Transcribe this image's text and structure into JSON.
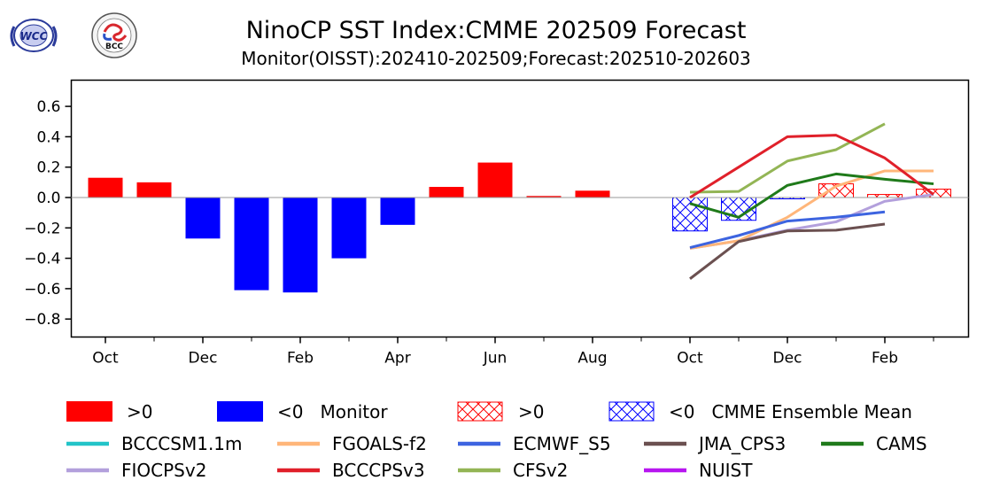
{
  "header": {
    "title": "NinoCP SST Index:CMME 202509 Forecast",
    "subtitle": "Monitor(OISST):202410-202509;Forecast:202510-202603",
    "logos": [
      {
        "name": "wcc-logo",
        "text": "WCC"
      },
      {
        "name": "bcc-logo",
        "text": "BCC"
      }
    ]
  },
  "chart_data": {
    "type": "bar",
    "title": "NinoCP SST Index:CMME 202509 Forecast",
    "subtitle": "Monitor(OISST):202410-202509;Forecast:202510-202603",
    "xlabel": "",
    "ylabel": "",
    "ylim": [
      -0.94,
      0.78
    ],
    "yticks": [
      0.6,
      0.4,
      0.2,
      0.0,
      -0.2,
      -0.4,
      -0.6,
      -0.8
    ],
    "ytick_labels": [
      "0.6",
      "0.4",
      "0.2",
      "0.0",
      "−0.2",
      "−0.4",
      "−0.6",
      "−0.8"
    ],
    "months": [
      "2024-10",
      "2024-11",
      "2024-12",
      "2025-01",
      "2025-02",
      "2025-03",
      "2025-04",
      "2025-05",
      "2025-06",
      "2025-07",
      "2025-08",
      "2025-09",
      "2025-10",
      "2025-11",
      "2025-12",
      "2026-01",
      "2026-02",
      "2026-03"
    ],
    "xtick_labels": [
      {
        "index": 0,
        "label": "Oct"
      },
      {
        "index": 2,
        "label": "Dec"
      },
      {
        "index": 4,
        "label": "Feb"
      },
      {
        "index": 6,
        "label": "Apr"
      },
      {
        "index": 8,
        "label": "Jun"
      },
      {
        "index": 10,
        "label": "Aug"
      },
      {
        "index": 12,
        "label": "Oct"
      },
      {
        "index": 14,
        "label": "Dec"
      },
      {
        "index": 16,
        "label": "Feb"
      }
    ],
    "monitor": {
      "name": "Monitor",
      "start_index": 0,
      "values": [
        0.13,
        0.1,
        -0.27,
        -0.61,
        -0.625,
        -0.4,
        -0.18,
        0.07,
        0.23,
        0.01,
        0.045,
        null
      ]
    },
    "ensemble_mean": {
      "name": "CMME Ensemble Mean",
      "start_index": 12,
      "values": [
        -0.22,
        -0.15,
        -0.005,
        0.09,
        0.02,
        0.055
      ]
    },
    "series": [
      {
        "name": "BCCCSM1.1m",
        "color": "#22c4c8",
        "start_index": 12,
        "values": []
      },
      {
        "name": "FGOALS-f2",
        "color": "#ffb67a",
        "start_index": 12,
        "values": [
          -0.335,
          -0.285,
          -0.13,
          0.075,
          0.175,
          0.175
        ]
      },
      {
        "name": "ECMWF_S5",
        "color": "#3d64e0",
        "start_index": 12,
        "values": [
          -0.33,
          -0.25,
          -0.155,
          -0.13,
          -0.095
        ]
      },
      {
        "name": "JMA_CPS3",
        "color": "#6b5050",
        "start_index": 12,
        "values": [
          -0.535,
          -0.29,
          -0.22,
          -0.215,
          -0.175
        ]
      },
      {
        "name": "CAMS",
        "color": "#1f7a1a",
        "start_index": 12,
        "values": [
          -0.04,
          -0.13,
          0.08,
          0.155,
          0.12,
          0.09
        ]
      },
      {
        "name": "FIOCPSv2",
        "color": "#b3a0dc",
        "start_index": 12,
        "values": [
          -0.335,
          -0.285,
          -0.215,
          -0.16,
          -0.025,
          0.02
        ]
      },
      {
        "name": "BCCCPSv3",
        "color": "#e0202a",
        "start_index": 12,
        "values": [
          0.0,
          0.2,
          0.4,
          0.41,
          0.26,
          0.02
        ]
      },
      {
        "name": "CFSv2",
        "color": "#93b555",
        "start_index": 12,
        "values": [
          0.035,
          0.04,
          0.24,
          0.315,
          0.485
        ]
      },
      {
        "name": "NUIST",
        "color": "#b716f0",
        "start_index": 12,
        "values": []
      }
    ],
    "colors": {
      "positive": "#ff0000",
      "negative": "#0000ff",
      "zero_line": "#999999"
    },
    "legend": {
      "placement": "bottom",
      "bar_entries": [
        {
          "label": ">0",
          "kind": "solid",
          "color": "#ff0000"
        },
        {
          "label": "<0   Monitor",
          "kind": "solid",
          "color": "#0000ff"
        },
        {
          "label": ">0",
          "kind": "hatch",
          "color": "#ff0000"
        },
        {
          "label": "<0   CMME Ensemble Mean",
          "kind": "hatch",
          "color": "#0000ff"
        }
      ],
      "line_rows": [
        [
          "BCCCSM1.1m",
          "FGOALS-f2",
          "ECMWF_S5",
          "JMA_CPS3",
          "CAMS"
        ],
        [
          "FIOCPSv2",
          "BCCCPSv3",
          "CFSv2",
          "NUIST"
        ]
      ]
    },
    "grid": false
  }
}
